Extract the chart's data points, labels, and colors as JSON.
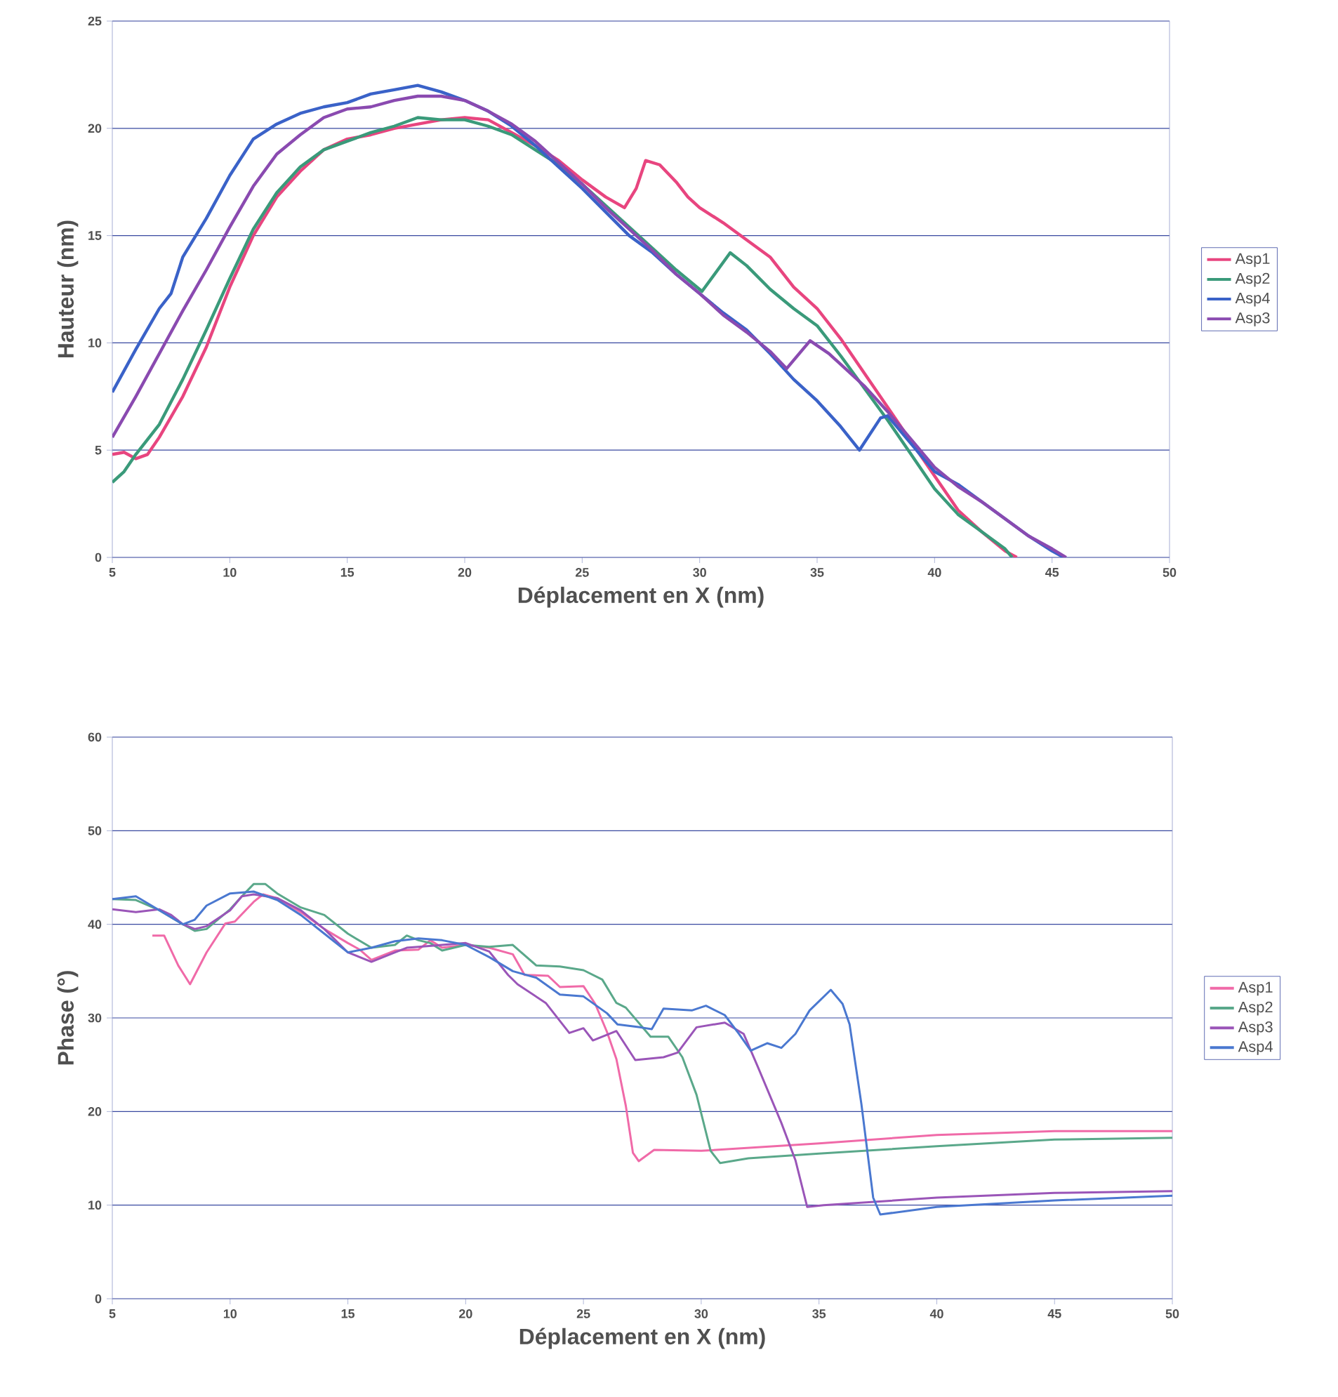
{
  "chart_data": [
    {
      "type": "line",
      "xlabel": "Déplacement en X (nm)",
      "ylabel": "Hauteur (nm)",
      "xlim": [
        5,
        50
      ],
      "xticks": [
        5,
        10,
        15,
        20,
        25,
        30,
        35,
        40,
        45,
        50
      ],
      "ylim": [
        0,
        25
      ],
      "yticks": [
        0,
        5,
        10,
        15,
        20,
        25
      ],
      "grid": "y",
      "legend": "right",
      "series": [
        {
          "name": "Asp1",
          "color": "#e8457f",
          "x": [
            5,
            5.5,
            6,
            6.5,
            7,
            8,
            9,
            10,
            11,
            12,
            13,
            14,
            15,
            16,
            17,
            18,
            19,
            20,
            21,
            22,
            23,
            24,
            25,
            26,
            26.8,
            27.3,
            27.7,
            28.3,
            29,
            29.5,
            30,
            31,
            32,
            33,
            34,
            35,
            36,
            37,
            38,
            39,
            40,
            41,
            42,
            43,
            43.5
          ],
          "values": [
            4.8,
            4.9,
            4.6,
            4.8,
            5.6,
            7.5,
            9.8,
            12.6,
            15,
            16.8,
            18,
            19,
            19.5,
            19.7,
            20,
            20.2,
            20.4,
            20.5,
            20.4,
            19.8,
            19.2,
            18.5,
            17.6,
            16.8,
            16.3,
            17.2,
            18.5,
            18.3,
            17.5,
            16.8,
            16.3,
            15.6,
            14.8,
            14,
            12.6,
            11.6,
            10.2,
            8.6,
            7,
            5.4,
            3.8,
            2.2,
            1.2,
            0.3,
            0
          ]
        },
        {
          "name": "Asp2",
          "color": "#3a9a7a",
          "x": [
            5,
            5.5,
            6,
            7,
            8,
            9,
            10,
            11,
            12,
            13,
            14,
            15,
            16,
            17,
            18,
            19,
            20,
            21,
            22,
            23,
            24,
            25,
            26,
            27,
            28,
            29,
            30.1,
            31.3,
            32,
            33,
            34,
            35,
            36,
            37,
            38,
            39,
            40,
            41,
            42,
            43,
            43.3
          ],
          "values": [
            3.5,
            4,
            4.8,
            6.2,
            8.3,
            10.6,
            13,
            15.3,
            17,
            18.2,
            19,
            19.4,
            19.8,
            20.1,
            20.5,
            20.4,
            20.4,
            20.1,
            19.7,
            19,
            18.3,
            17.4,
            16.4,
            15.4,
            14.4,
            13.4,
            12.4,
            14.2,
            13.6,
            12.5,
            11.6,
            10.8,
            9.4,
            7.9,
            6.4,
            4.8,
            3.2,
            2,
            1.2,
            0.4,
            0
          ]
        },
        {
          "name": "Asp4",
          "color": "#3a62c8",
          "x": [
            5,
            6,
            7,
            7.5,
            8,
            9,
            10,
            11,
            12,
            13,
            14,
            15,
            16,
            17,
            18,
            19,
            20,
            21,
            22,
            23,
            24,
            25,
            26,
            27,
            28,
            29,
            30,
            31,
            32,
            33,
            34,
            35,
            36,
            36.8,
            37.7,
            38,
            39,
            40,
            41,
            42,
            43,
            44,
            45,
            45.5
          ],
          "values": [
            7.7,
            9.7,
            11.6,
            12.3,
            14,
            15.8,
            17.8,
            19.5,
            20.2,
            20.7,
            21,
            21.2,
            21.6,
            21.8,
            22,
            21.7,
            21.3,
            20.8,
            20.1,
            19.2,
            18.2,
            17.2,
            16.1,
            15,
            14.2,
            13.2,
            12.3,
            11.4,
            10.6,
            9.5,
            8.3,
            7.3,
            6.1,
            5,
            6.5,
            6.6,
            5.3,
            4,
            3.4,
            2.6,
            1.8,
            1,
            0.3,
            0
          ]
        },
        {
          "name": "Asp3",
          "color": "#8a4ab0",
          "x": [
            5,
            6,
            7,
            8,
            9,
            10,
            11,
            12,
            13,
            14,
            15,
            16,
            17,
            18,
            19,
            20,
            21,
            22,
            23,
            24,
            25,
            26,
            27,
            28,
            29,
            30,
            31,
            32,
            33,
            33.7,
            34.7,
            35.5,
            36,
            37,
            38,
            39,
            40,
            41,
            42,
            43,
            44,
            45,
            45.6
          ],
          "values": [
            5.6,
            7.5,
            9.5,
            11.5,
            13.4,
            15.4,
            17.3,
            18.8,
            19.7,
            20.5,
            20.9,
            21,
            21.3,
            21.5,
            21.5,
            21.3,
            20.8,
            20.2,
            19.4,
            18.4,
            17.4,
            16.3,
            15.3,
            14.3,
            13.2,
            12.3,
            11.3,
            10.5,
            9.6,
            8.8,
            10.1,
            9.5,
            9,
            8,
            6.8,
            5.5,
            4.2,
            3.3,
            2.6,
            1.8,
            1,
            0.4,
            0
          ]
        }
      ]
    },
    {
      "type": "line",
      "xlabel": "Déplacement en X (nm)",
      "ylabel": "Phase (°)",
      "xlim": [
        5,
        50
      ],
      "xticks": [
        5,
        10,
        15,
        20,
        25,
        30,
        35,
        40,
        45,
        50
      ],
      "ylim": [
        0,
        60
      ],
      "yticks": [
        0,
        10,
        20,
        30,
        40,
        50,
        60
      ],
      "grid": "y",
      "legend": "right",
      "series": [
        {
          "name": "Asp1",
          "color": "#f06aa8",
          "x": [
            6.7,
            7.2,
            7.8,
            8.3,
            9,
            9.8,
            10.2,
            11,
            11.4,
            12,
            13,
            14,
            15,
            15.5,
            16,
            17,
            18,
            18.5,
            19,
            20,
            21,
            22,
            22.5,
            23.5,
            24,
            25,
            25.5,
            26,
            26.4,
            26.8,
            27.1,
            27.35,
            28,
            30,
            35,
            40,
            45,
            50
          ],
          "values": [
            38.8,
            38.8,
            35.6,
            33.6,
            37,
            40.1,
            40.3,
            42.4,
            43.2,
            42.8,
            41.3,
            39.5,
            38,
            37.3,
            36.2,
            37.2,
            37.3,
            38.3,
            37.5,
            37.8,
            37.5,
            36.8,
            34.6,
            34.5,
            33.3,
            33.4,
            31.5,
            28.5,
            25.6,
            20.6,
            15.6,
            14.7,
            15.9,
            15.8,
            16.6,
            17.5,
            17.9,
            17.9
          ]
        },
        {
          "name": "Asp2",
          "color": "#5aa88a",
          "x": [
            5,
            6,
            7,
            8,
            8.5,
            9,
            10,
            10.5,
            11,
            11.5,
            12,
            13,
            14,
            15,
            16,
            17,
            17.5,
            18,
            18.5,
            19,
            20,
            21,
            22,
            23,
            24,
            25,
            25.8,
            26.4,
            26.8,
            27.85,
            28.6,
            29.2,
            29.8,
            30.4,
            30.8,
            32,
            35,
            40,
            45,
            50
          ],
          "values": [
            42.7,
            42.6,
            41.5,
            40,
            39.3,
            39.5,
            41.6,
            43,
            44.3,
            44.3,
            43.3,
            41.8,
            41,
            39,
            37.5,
            37.8,
            38.8,
            38.3,
            38,
            37.2,
            37.8,
            37.6,
            37.8,
            35.6,
            35.5,
            35.1,
            34.1,
            31.6,
            31.1,
            28,
            28,
            25.8,
            21.8,
            15.8,
            14.5,
            15,
            15.5,
            16.3,
            17,
            17.2
          ]
        },
        {
          "name": "Asp3",
          "color": "#9a55b8",
          "x": [
            5,
            6,
            7,
            7.5,
            8,
            8.5,
            9,
            10,
            10.5,
            11,
            12,
            13,
            14,
            15,
            16,
            17,
            17.5,
            18,
            19,
            20,
            21,
            21.8,
            22.2,
            23.4,
            24.4,
            25,
            25.4,
            26.4,
            27.2,
            28.4,
            29,
            29.8,
            31,
            31.8,
            32.4,
            33.4,
            34,
            34.5,
            35.2,
            40,
            45,
            50
          ],
          "values": [
            41.6,
            41.3,
            41.6,
            41,
            40,
            39.5,
            39.8,
            41.5,
            43,
            43.2,
            42.8,
            41.5,
            39.5,
            37,
            36,
            37,
            37.5,
            37.6,
            37.8,
            38,
            37.1,
            34.6,
            33.6,
            31.6,
            28.4,
            28.9,
            27.6,
            28.6,
            25.5,
            25.8,
            26.3,
            29,
            29.5,
            28.3,
            24.8,
            18.8,
            14.8,
            9.8,
            10,
            10.8,
            11.3,
            11.5
          ]
        },
        {
          "name": "Asp4",
          "color": "#4a78d0",
          "x": [
            5,
            6,
            7,
            8,
            8.5,
            9,
            10,
            11,
            12,
            13,
            14,
            15,
            16,
            17,
            18,
            19,
            20,
            21,
            22,
            23,
            24,
            25,
            26,
            26.45,
            27.4,
            27.9,
            28.4,
            29.6,
            30.2,
            31,
            31.6,
            32.1,
            32.8,
            33.4,
            34,
            34.6,
            35.5,
            36,
            36.3,
            36.8,
            37.3,
            37.6,
            40,
            45,
            50
          ],
          "values": [
            42.7,
            43,
            41.5,
            40,
            40.5,
            42,
            43.3,
            43.5,
            42.6,
            41,
            39,
            37,
            37.5,
            38.2,
            38.5,
            38.3,
            37.8,
            36.5,
            35,
            34.3,
            32.5,
            32.3,
            30.5,
            29.3,
            29,
            28.8,
            31,
            30.8,
            31.3,
            30.3,
            28.3,
            26.5,
            27.3,
            26.8,
            28.3,
            30.8,
            33,
            31.5,
            29.3,
            20.8,
            10.8,
            9,
            9.8,
            10.5,
            11
          ]
        }
      ]
    }
  ]
}
